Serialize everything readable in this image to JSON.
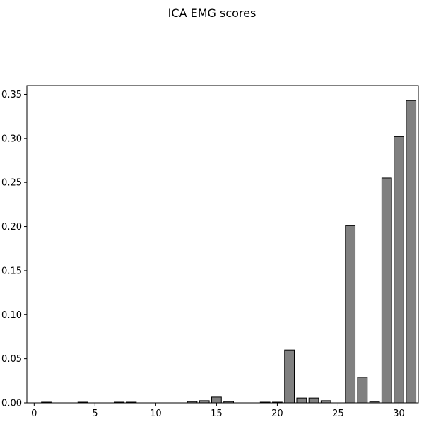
{
  "chart_data": {
    "type": "bar",
    "title": "ICA EMG scores",
    "xlabel": "",
    "ylabel": "",
    "x": [
      0,
      1,
      2,
      3,
      4,
      5,
      6,
      7,
      8,
      9,
      10,
      11,
      12,
      13,
      14,
      15,
      16,
      17,
      18,
      19,
      20,
      21,
      22,
      23,
      24,
      25,
      26,
      27,
      28,
      29,
      30,
      31
    ],
    "values": [
      0.0,
      0.0008,
      0.0,
      0.0,
      0.0008,
      0.0,
      0.0,
      0.0008,
      0.0008,
      0.0,
      0.0,
      0.0,
      0.0,
      0.0015,
      0.0025,
      0.0065,
      0.0015,
      0.0,
      0.0,
      0.0008,
      0.0008,
      0.06,
      0.0055,
      0.0055,
      0.0025,
      0.0,
      0.201,
      0.029,
      0.0015,
      0.255,
      0.302,
      0.343
    ],
    "xlim": [
      -0.6,
      31.6
    ],
    "ylim": [
      0,
      0.36
    ],
    "xticks": [
      0,
      5,
      10,
      15,
      20,
      25,
      30
    ],
    "xtick_labels": [
      "0",
      "5",
      "10",
      "15",
      "20",
      "25",
      "30"
    ],
    "yticks": [
      0.0,
      0.05,
      0.1,
      0.15,
      0.2,
      0.25,
      0.3,
      0.35
    ],
    "ytick_labels": [
      "0.00",
      "0.05",
      "0.10",
      "0.15",
      "0.20",
      "0.25",
      "0.30",
      "0.35"
    ],
    "bar_color": "#808080",
    "edge_color": "#000000",
    "grid": false,
    "legend": "none"
  }
}
